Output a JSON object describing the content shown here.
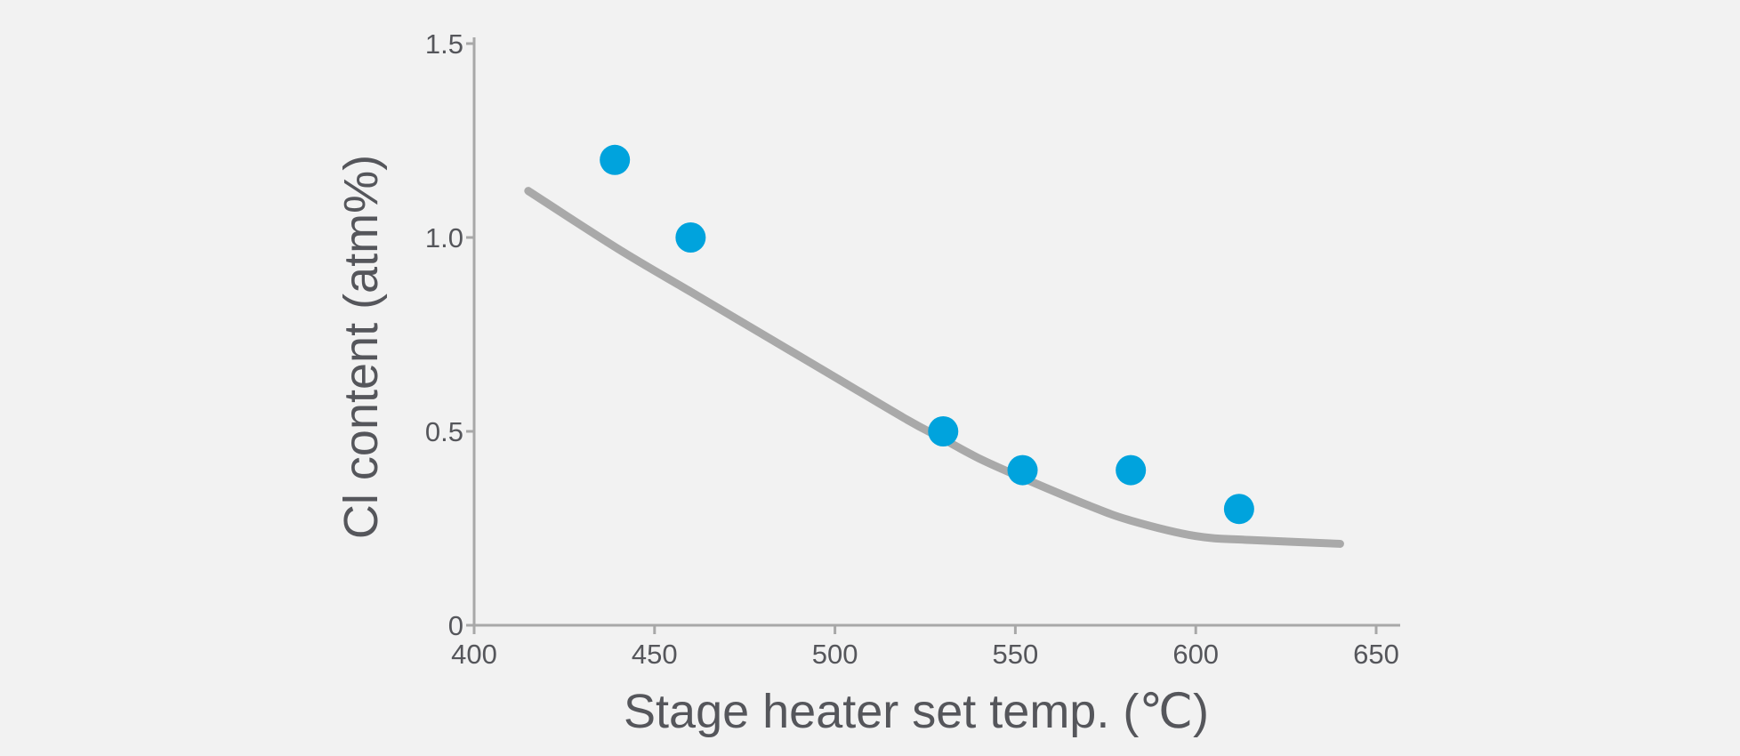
{
  "chart_data": {
    "type": "scatter",
    "title": "",
    "xlabel": "Stage heater set temp. (℃)",
    "ylabel": "Cl content (atm%)",
    "xlim": [
      400,
      650
    ],
    "ylim": [
      0,
      1.5
    ],
    "x_ticks": [
      400,
      450,
      500,
      550,
      600,
      650
    ],
    "y_ticks": [
      0,
      0.5,
      1.0,
      1.5
    ],
    "x_tick_labels": [
      "400",
      "450",
      "500",
      "550",
      "600",
      "650"
    ],
    "y_tick_labels": [
      "0",
      "0.5",
      "1.0",
      "1.5"
    ],
    "grid": false,
    "legend": "none",
    "series": [
      {
        "kind": "points",
        "color": "#00a3dd",
        "x": [
          439,
          460,
          530,
          552,
          582,
          612
        ],
        "y": [
          1.2,
          1.0,
          0.5,
          0.4,
          0.4,
          0.3
        ]
      },
      {
        "kind": "fit-curve",
        "color": "#a9a9a9",
        "x": [
          415,
          440,
          460,
          480,
          500,
          520,
          530,
          540,
          552,
          570,
          582,
          600,
          615,
          640
        ],
        "y": [
          1.12,
          0.97,
          0.86,
          0.75,
          0.64,
          0.53,
          0.48,
          0.43,
          0.38,
          0.31,
          0.27,
          0.23,
          0.22,
          0.21
        ]
      }
    ],
    "colors": {
      "axis": "#a8a8a8",
      "text": "#55565b",
      "background": "#f2f2f2"
    }
  }
}
